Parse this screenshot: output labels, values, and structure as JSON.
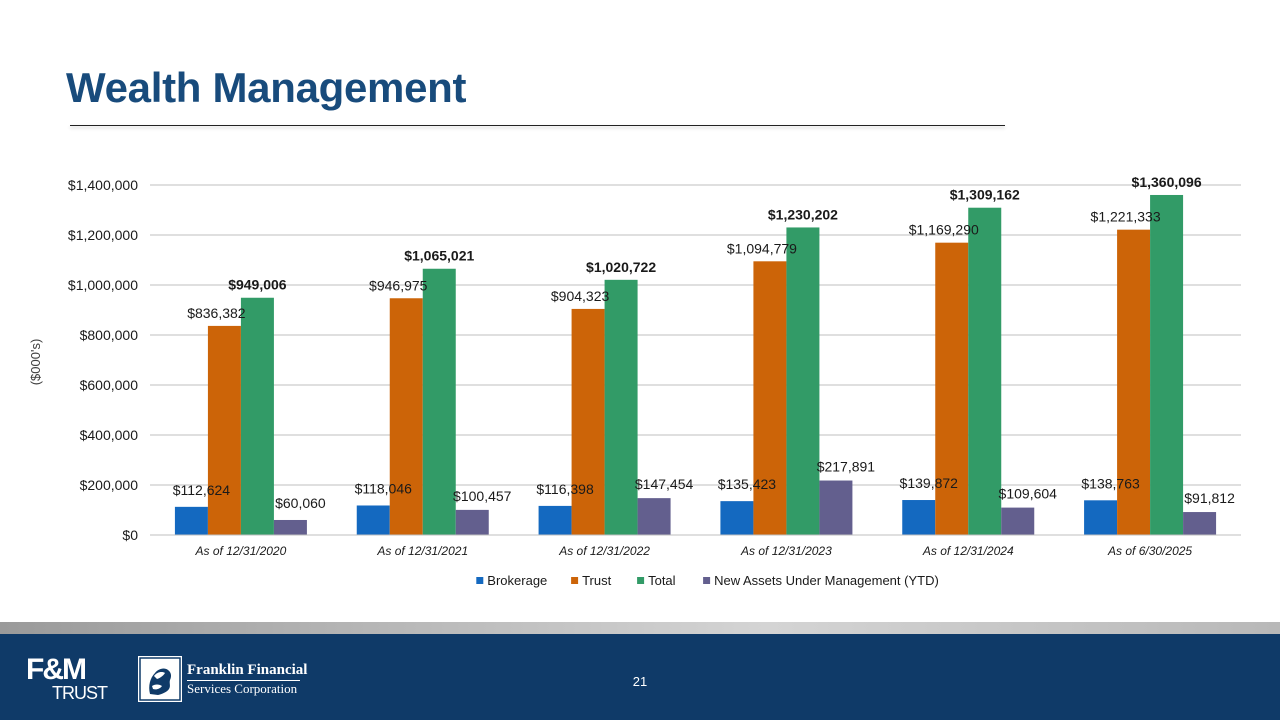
{
  "slide": {
    "title": "Wealth Management",
    "page_number": "21"
  },
  "footer": {
    "logo_primary_top": "F&M",
    "logo_primary_bottom": "TRUST",
    "logo_secondary_name": "Franklin Financial",
    "logo_secondary_sub": "Services Corporation"
  },
  "colors": {
    "title": "#184b7c",
    "footer": "#0f3a68",
    "brokerage": "#1469c0",
    "trust": "#cc6408",
    "total": "#329b67",
    "new_assets": "#635f8e"
  },
  "chart_data": {
    "type": "bar",
    "title": "",
    "xlabel": "",
    "ylabel": "($000's)",
    "ylim": [
      0,
      1400000
    ],
    "yticks": [
      0,
      200000,
      400000,
      600000,
      800000,
      1000000,
      1200000,
      1400000
    ],
    "ytick_labels": [
      "$0",
      "$200,000",
      "$400,000",
      "$600,000",
      "$800,000",
      "$1,000,000",
      "$1,200,000",
      "$1,400,000"
    ],
    "grid": true,
    "legend_position": "bottom",
    "categories": [
      "As of 12/31/2020",
      "As of 12/31/2021",
      "As of 12/31/2022",
      "As of 12/31/2023",
      "As of 12/31/2024",
      "As of 6/30/2025"
    ],
    "series": [
      {
        "name": "Brokerage",
        "color": "#1469c0",
        "values": [
          112624,
          118046,
          116398,
          135423,
          139872,
          138763
        ],
        "labels": [
          "$112,624",
          "$118,046",
          "$116,398",
          "$135,423",
          "$139,872",
          "$138,763"
        ],
        "label_bold": false
      },
      {
        "name": "Trust",
        "color": "#cc6408",
        "values": [
          836382,
          946975,
          904323,
          1094779,
          1169290,
          1221333
        ],
        "labels": [
          "$836,382",
          "$946,975",
          "$904,323",
          "$1,094,779",
          "$1,169,290",
          "$1,221,333"
        ],
        "label_bold": false
      },
      {
        "name": "Total",
        "color": "#329b67",
        "values": [
          949006,
          1065021,
          1020722,
          1230202,
          1309162,
          1360096
        ],
        "labels": [
          "$949,006",
          "$1,065,021",
          "$1,020,722",
          "$1,230,202",
          "$1,309,162",
          "$1,360,096"
        ],
        "label_bold": true
      },
      {
        "name": "New Assets Under Management (YTD)",
        "color": "#635f8e",
        "values": [
          60060,
          100457,
          147454,
          217891,
          109604,
          91812
        ],
        "labels": [
          "$60,060",
          "$100,457",
          "$147,454",
          "$217,891",
          "$109,604",
          "$91,812"
        ],
        "label_bold": false
      }
    ]
  }
}
